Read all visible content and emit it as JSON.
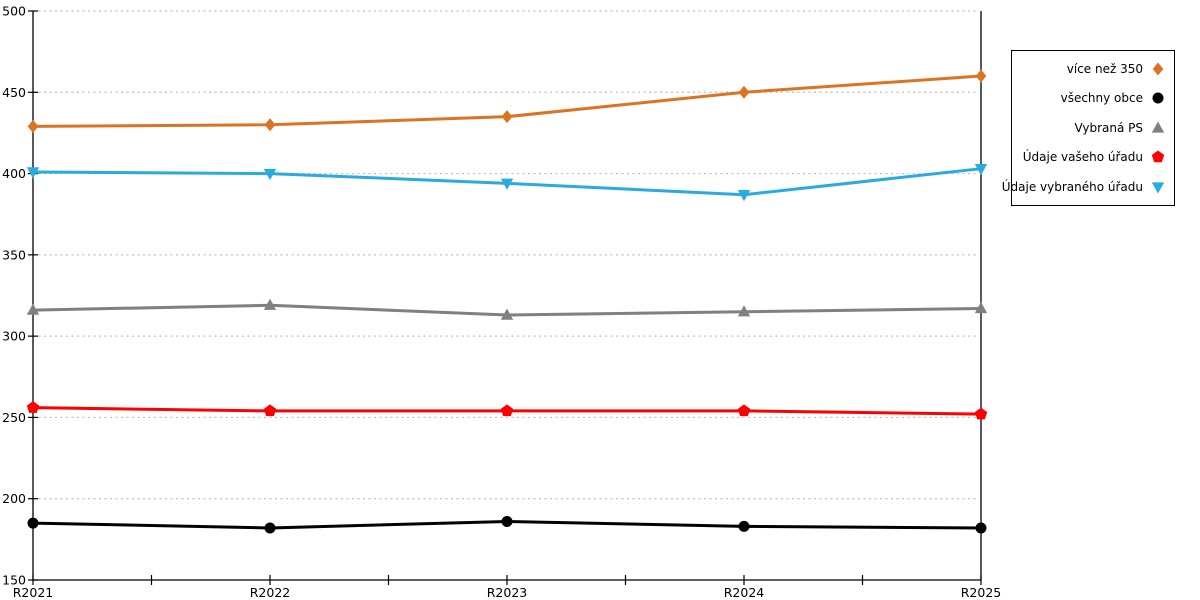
{
  "chart_data": {
    "type": "line",
    "title": "",
    "xlabel": "",
    "ylabel": "",
    "categories": [
      "R2021",
      "R2022",
      "R2023",
      "R2024",
      "R2025"
    ],
    "series": [
      {
        "name": "více než 350",
        "marker": "diamond",
        "color": "#DC7321",
        "values": [
          429,
          430,
          435,
          450,
          460
        ]
      },
      {
        "name": "všechny obce",
        "marker": "circle",
        "color": "#000000",
        "values": [
          185,
          182,
          186,
          183,
          182
        ]
      },
      {
        "name": "Vybraná PS",
        "marker": "triangle-up",
        "color": "#808080",
        "values": [
          316,
          319,
          313,
          315,
          317
        ]
      },
      {
        "name": "Údaje vašeho úřadu",
        "marker": "pentagon",
        "color": "#FF0000",
        "values": [
          256,
          254,
          254,
          254,
          252
        ]
      },
      {
        "name": "Údaje vybraného úřadu",
        "marker": "triangle-down",
        "color": "#29ABE2",
        "values": [
          401,
          400,
          394,
          387,
          403
        ]
      }
    ],
    "ylim": [
      150,
      500
    ],
    "yticks": [
      150,
      200,
      250,
      300,
      350,
      400,
      450,
      500
    ],
    "grid": "horizontal-dashed",
    "grid_color": "#bdbdbd",
    "axis_color": "#000000",
    "legend_position": "outside-right-top",
    "legend_entries": [
      "více než 350",
      "všechny obce",
      "Vybraná PS",
      "Údaje vašeho úřadu",
      "Údaje vybraného úřadu"
    ]
  }
}
